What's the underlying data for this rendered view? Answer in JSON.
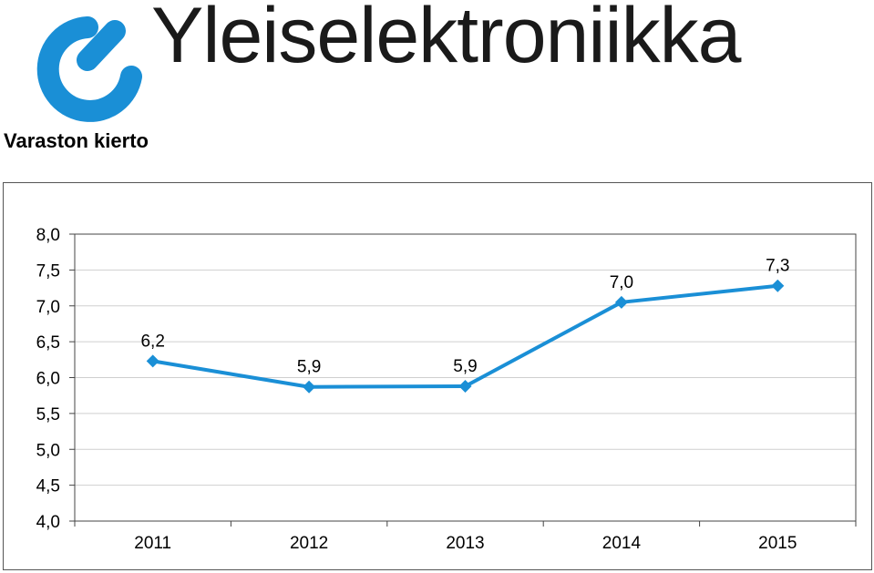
{
  "header": {
    "brand_name": "Yleiselektroniikka",
    "brand_color": "#1a8fd6"
  },
  "chart_data": {
    "type": "line",
    "title": "Varaston kierto",
    "categories": [
      "2011",
      "2012",
      "2013",
      "2014",
      "2015"
    ],
    "series": [
      {
        "values": [
          6.23,
          5.87,
          5.88,
          7.05,
          7.28
        ],
        "data_labels": [
          "6,2",
          "5,9",
          "5,9",
          "7,0",
          "7,3"
        ],
        "color": "#1a8fd6",
        "marker": "diamond"
      }
    ],
    "ylim": [
      4.0,
      8.0
    ],
    "yticks": [
      4.0,
      4.5,
      5.0,
      5.5,
      6.0,
      6.5,
      7.0,
      7.5,
      8.0
    ],
    "ytick_labels": [
      "4,0",
      "4,5",
      "5,0",
      "5,5",
      "6,0",
      "6,5",
      "7,0",
      "7,5",
      "8,0"
    ],
    "xlabel": "",
    "ylabel": "",
    "grid": true,
    "legend": "none"
  }
}
